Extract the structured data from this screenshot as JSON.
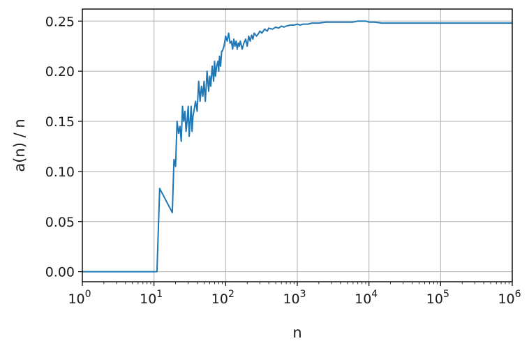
{
  "chart_data": {
    "type": "line",
    "title": "",
    "xlabel": "n",
    "ylabel": "a(n) / n",
    "xscale": "log",
    "xlim": [
      1,
      1000000
    ],
    "ylim": [
      -0.01,
      0.262
    ],
    "grid": true,
    "line_color": "#1f77b4",
    "x_ticks": [
      {
        "value": 1,
        "base": "10",
        "exp": "0"
      },
      {
        "value": 10,
        "base": "10",
        "exp": "1"
      },
      {
        "value": 100,
        "base": "10",
        "exp": "2"
      },
      {
        "value": 1000,
        "base": "10",
        "exp": "3"
      },
      {
        "value": 10000,
        "base": "10",
        "exp": "4"
      },
      {
        "value": 100000,
        "base": "10",
        "exp": "5"
      },
      {
        "value": 1000000,
        "base": "10",
        "exp": "6"
      }
    ],
    "y_ticks": [
      {
        "value": 0.0,
        "label": "0.00"
      },
      {
        "value": 0.05,
        "label": "0.05"
      },
      {
        "value": 0.1,
        "label": "0.10"
      },
      {
        "value": 0.15,
        "label": "0.15"
      },
      {
        "value": 0.2,
        "label": "0.20"
      },
      {
        "value": 0.25,
        "label": "0.25"
      }
    ],
    "series": [
      {
        "x": [
          1,
          5,
          10,
          11,
          12,
          18,
          19,
          20,
          21,
          22,
          23,
          24,
          25,
          26,
          27,
          28,
          29,
          30,
          31,
          32,
          33,
          34,
          35,
          36,
          38,
          40,
          42,
          44,
          46,
          48,
          50,
          52,
          55,
          58,
          60,
          62,
          65,
          68,
          70,
          72,
          75,
          78,
          80,
          82,
          85,
          88,
          90,
          95,
          100,
          105,
          110,
          115,
          120,
          125,
          130,
          135,
          140,
          145,
          150,
          155,
          160,
          170,
          180,
          190,
          200,
          210,
          220,
          230,
          240,
          250,
          270,
          290,
          300,
          320,
          350,
          380,
          400,
          450,
          500,
          550,
          600,
          650,
          700,
          800,
          900,
          1000,
          1100,
          1200,
          1400,
          1600,
          1800,
          2000,
          2500,
          3000,
          3500,
          4000,
          5000,
          6000,
          7000,
          8000,
          9000,
          10000,
          12000,
          15000,
          20000,
          30000,
          50000,
          100000,
          200000,
          500000,
          1000000
        ],
        "y": [
          0,
          0,
          0,
          0,
          0.083,
          0.059,
          0.112,
          0.105,
          0.15,
          0.138,
          0.145,
          0.13,
          0.165,
          0.15,
          0.16,
          0.14,
          0.15,
          0.165,
          0.135,
          0.15,
          0.165,
          0.14,
          0.155,
          0.16,
          0.17,
          0.16,
          0.19,
          0.17,
          0.185,
          0.175,
          0.19,
          0.17,
          0.2,
          0.18,
          0.195,
          0.185,
          0.205,
          0.19,
          0.21,
          0.195,
          0.205,
          0.21,
          0.2,
          0.215,
          0.205,
          0.22,
          0.22,
          0.225,
          0.235,
          0.23,
          0.238,
          0.228,
          0.23,
          0.222,
          0.232,
          0.225,
          0.23,
          0.222,
          0.228,
          0.225,
          0.23,
          0.222,
          0.228,
          0.232,
          0.225,
          0.235,
          0.23,
          0.236,
          0.232,
          0.238,
          0.235,
          0.238,
          0.24,
          0.238,
          0.242,
          0.24,
          0.243,
          0.242,
          0.244,
          0.243,
          0.245,
          0.244,
          0.245,
          0.246,
          0.246,
          0.247,
          0.246,
          0.247,
          0.247,
          0.248,
          0.248,
          0.248,
          0.249,
          0.249,
          0.249,
          0.249,
          0.249,
          0.249,
          0.25,
          0.25,
          0.25,
          0.249,
          0.249,
          0.248,
          0.248,
          0.248,
          0.248,
          0.248,
          0.248,
          0.248,
          0.248
        ]
      }
    ]
  }
}
